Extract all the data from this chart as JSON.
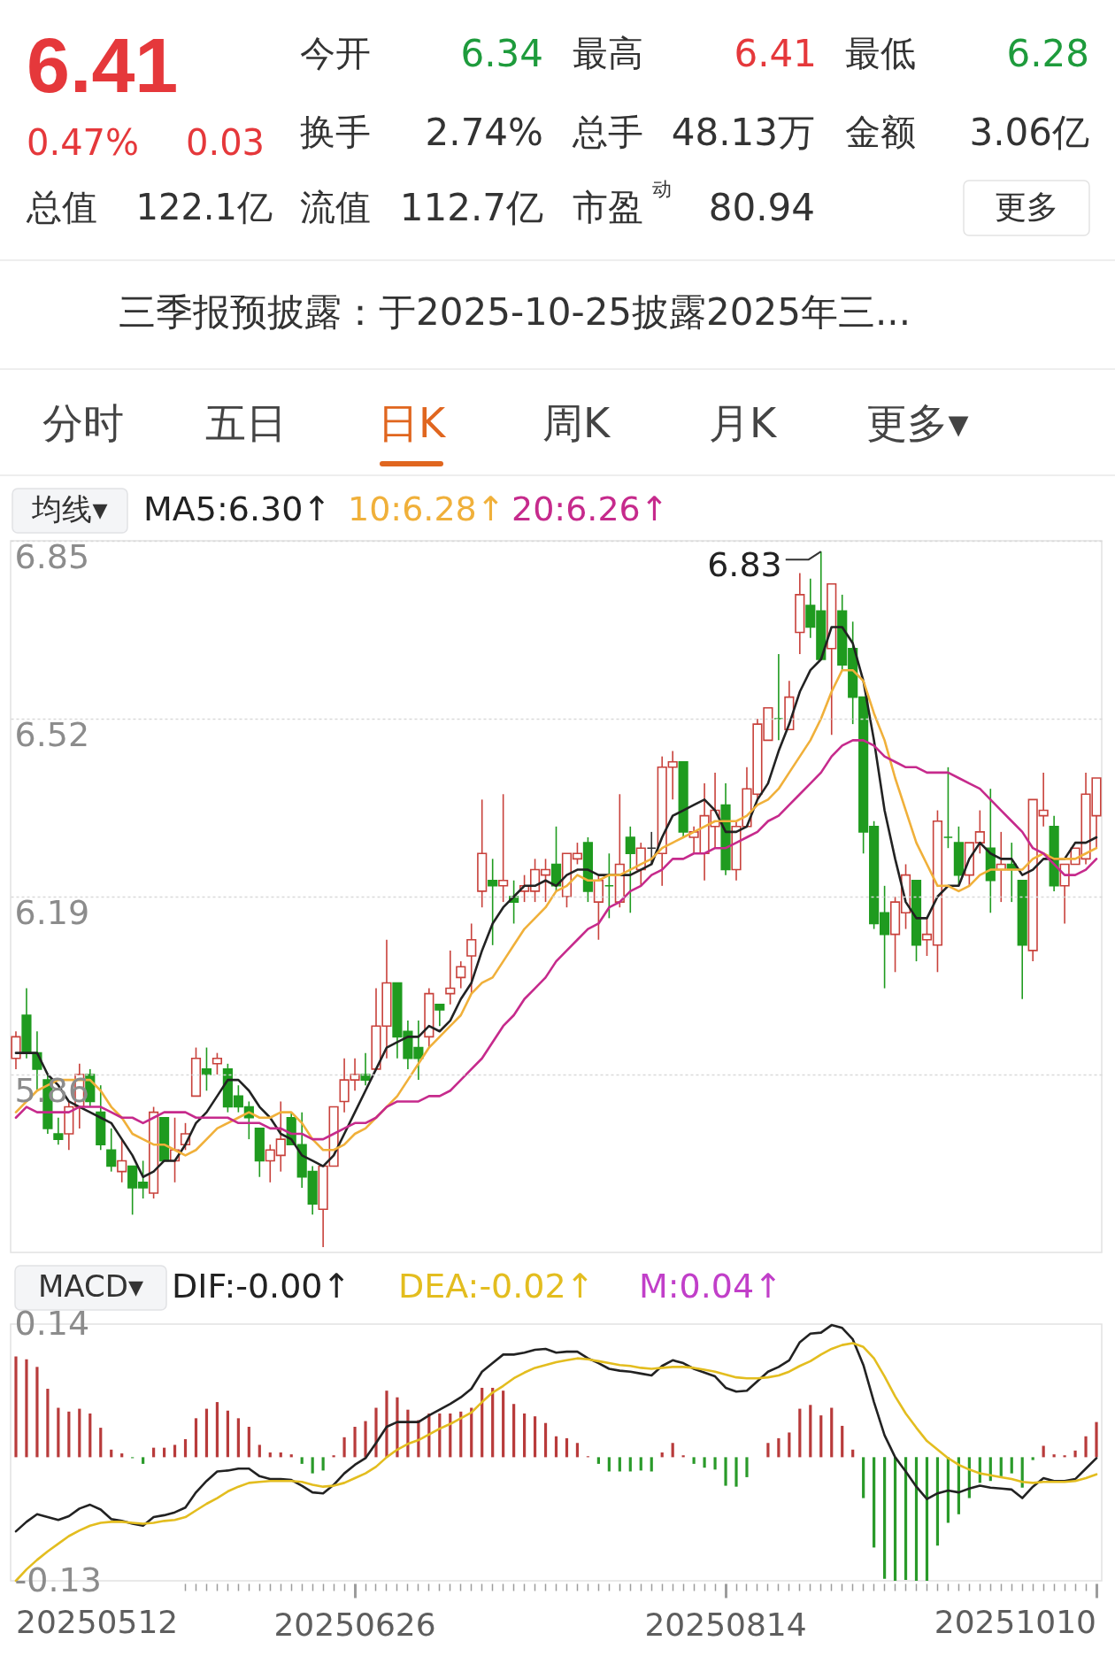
{
  "chart_data": [
    {
      "type": "other",
      "annotations": [
        "6.41",
        "0.47%",
        "0.03",
        "今开",
        "6.34",
        "最高",
        "6.41",
        "最低",
        "6.28",
        "换手",
        "2.74%",
        "总手",
        "48.13万",
        "金额",
        "3.06亿",
        "总值",
        "122.1亿",
        "流值",
        "112.7亿",
        "市盈$^{动}$",
        "80.94",
        "更多",
        "三季报预披露：于2025-10-25披露2025年三...",
        "分时",
        "五日",
        "日K",
        "周K",
        "月K",
        "更多▾"
      ]
    },
    {
      "type": "candlestick",
      "legend": "top left",
      "legend_title": "均线▾",
      "grid": "y",
      "tick_labels": "y",
      "ylim": [
        5.53,
        6.85
      ],
      "yticks": [
        5.86,
        6.19,
        6.52,
        6.85
      ],
      "annotations": [
        "6.83"
      ],
      "categories": [
        null,
        null,
        null,
        null,
        null,
        null,
        null,
        null,
        null,
        null,
        null,
        null,
        null,
        null,
        null,
        null,
        null,
        null,
        null,
        null,
        null,
        null,
        null,
        null,
        null,
        null,
        null,
        null,
        null,
        null,
        null,
        null,
        null,
        null,
        null,
        null,
        null,
        null,
        null,
        null,
        null,
        null,
        null,
        null,
        null,
        null,
        null,
        null,
        null,
        null,
        null,
        null,
        null,
        null,
        null,
        null,
        null,
        null,
        null,
        null,
        null,
        null,
        null,
        null,
        null,
        null,
        null,
        null,
        null,
        null,
        null,
        null,
        null,
        null,
        null,
        null,
        null,
        null,
        null,
        null,
        null,
        null,
        null,
        null,
        null,
        null,
        null,
        null,
        null,
        null,
        null,
        null,
        null,
        null,
        null,
        null,
        null,
        null,
        null,
        null,
        null,
        null,
        null
      ],
      "ohlc": [
        [
          5.89,
          5.94,
          5.87,
          5.93
        ],
        [
          5.97,
          6.02,
          5.89,
          5.9
        ],
        [
          5.9,
          5.94,
          5.83,
          5.87
        ],
        [
          5.85,
          5.86,
          5.75,
          5.76
        ],
        [
          5.75,
          5.78,
          5.73,
          5.74
        ],
        [
          5.75,
          5.81,
          5.72,
          5.8
        ],
        [
          5.8,
          5.88,
          5.76,
          5.86
        ],
        [
          5.86,
          5.87,
          5.8,
          5.81
        ],
        [
          5.79,
          5.84,
          5.72,
          5.73
        ],
        [
          5.72,
          5.76,
          5.68,
          5.69
        ],
        [
          5.68,
          5.74,
          5.66,
          5.7
        ],
        [
          5.69,
          5.69,
          5.6,
          5.65
        ],
        [
          5.66,
          5.7,
          5.63,
          5.65
        ],
        [
          5.64,
          5.8,
          5.63,
          5.79
        ],
        [
          5.78,
          5.78,
          5.7,
          5.7
        ],
        [
          5.7,
          5.78,
          5.66,
          5.72
        ],
        [
          5.73,
          5.77,
          5.72,
          5.75
        ],
        [
          5.82,
          5.91,
          5.82,
          5.89
        ],
        [
          5.87,
          5.91,
          5.83,
          5.86
        ],
        [
          5.88,
          5.9,
          5.86,
          5.89
        ],
        [
          5.87,
          5.88,
          5.79,
          5.8
        ],
        [
          5.82,
          5.84,
          5.79,
          5.8
        ],
        [
          5.8,
          5.81,
          5.74,
          5.78
        ],
        [
          5.76,
          5.76,
          5.67,
          5.7
        ],
        [
          5.7,
          5.73,
          5.66,
          5.72
        ],
        [
          5.71,
          5.81,
          5.68,
          5.74
        ],
        [
          5.78,
          5.79,
          5.73,
          5.73
        ],
        [
          5.73,
          5.79,
          5.65,
          5.67
        ],
        [
          5.68,
          5.69,
          5.6,
          5.62
        ],
        [
          5.61,
          5.69,
          5.54,
          5.69
        ],
        [
          5.69,
          5.8,
          5.69,
          5.8
        ],
        [
          5.81,
          5.89,
          5.79,
          5.85
        ],
        [
          5.85,
          5.89,
          5.83,
          5.86
        ],
        [
          5.86,
          5.9,
          5.84,
          5.85
        ],
        [
          5.87,
          6.02,
          5.87,
          5.95
        ],
        [
          5.95,
          6.11,
          5.89,
          6.03
        ],
        [
          6.03,
          6.03,
          5.89,
          5.93
        ],
        [
          5.94,
          5.96,
          5.87,
          5.89
        ],
        [
          5.91,
          5.96,
          5.85,
          5.89
        ],
        [
          5.93,
          6.02,
          5.91,
          6.01
        ],
        [
          5.99,
          5.99,
          5.95,
          5.98
        ],
        [
          6.01,
          6.09,
          5.99,
          6.02
        ],
        [
          6.04,
          6.07,
          6.02,
          6.06
        ],
        [
          6.08,
          6.14,
          6.01,
          6.11
        ],
        [
          6.2,
          6.37,
          6.17,
          6.27
        ],
        [
          6.22,
          6.26,
          6.1,
          6.21
        ],
        [
          6.21,
          6.38,
          6.18,
          6.22
        ],
        [
          6.19,
          6.22,
          6.14,
          6.18
        ],
        [
          6.2,
          6.23,
          6.18,
          6.21
        ],
        [
          6.2,
          6.26,
          6.18,
          6.24
        ],
        [
          6.23,
          6.26,
          6.18,
          6.24
        ],
        [
          6.25,
          6.32,
          6.2,
          6.21
        ],
        [
          6.19,
          6.27,
          6.17,
          6.27
        ],
        [
          6.26,
          6.29,
          6.25,
          6.27
        ],
        [
          6.29,
          6.3,
          6.18,
          6.2
        ],
        [
          6.18,
          6.23,
          6.11,
          6.22
        ],
        [
          6.21,
          6.27,
          6.15,
          6.21
        ],
        [
          6.18,
          6.38,
          6.17,
          6.25
        ],
        [
          6.3,
          6.32,
          6.16,
          6.27
        ],
        [
          6.24,
          6.29,
          6.21,
          6.28
        ],
        [
          6.28,
          6.31,
          6.25,
          6.28
        ],
        [
          6.27,
          6.45,
          6.21,
          6.43
        ],
        [
          6.43,
          6.46,
          6.37,
          6.44
        ],
        [
          6.44,
          6.44,
          6.3,
          6.31
        ],
        [
          6.3,
          6.32,
          6.27,
          6.31
        ],
        [
          6.27,
          6.4,
          6.22,
          6.34
        ],
        [
          6.32,
          6.42,
          6.28,
          6.35
        ],
        [
          6.36,
          6.4,
          6.23,
          6.24
        ],
        [
          6.24,
          6.33,
          6.22,
          6.32
        ],
        [
          6.32,
          6.43,
          6.32,
          6.39
        ],
        [
          6.38,
          6.52,
          6.37,
          6.51
        ],
        [
          6.48,
          6.54,
          6.48,
          6.54
        ],
        [
          6.52,
          6.64,
          6.48,
          6.52
        ],
        [
          6.5,
          6.59,
          6.5,
          6.56
        ],
        [
          6.68,
          6.79,
          6.64,
          6.75
        ],
        [
          6.73,
          6.78,
          6.67,
          6.69
        ],
        [
          6.72,
          6.83,
          6.63,
          6.63
        ],
        [
          6.65,
          6.77,
          6.49,
          6.77
        ],
        [
          6.72,
          6.75,
          6.61,
          6.62
        ],
        [
          6.65,
          6.7,
          6.51,
          6.56
        ],
        [
          6.56,
          6.56,
          6.27,
          6.31
        ],
        [
          6.32,
          6.33,
          6.13,
          6.14
        ],
        [
          6.16,
          6.21,
          6.02,
          6.12
        ],
        [
          6.12,
          6.19,
          6.05,
          6.18
        ],
        [
          6.16,
          6.25,
          6.13,
          6.23
        ],
        [
          6.22,
          6.22,
          6.07,
          6.1
        ],
        [
          6.11,
          6.15,
          6.08,
          6.12
        ],
        [
          6.1,
          6.35,
          6.05,
          6.33
        ],
        [
          6.3,
          6.43,
          6.28,
          6.3
        ],
        [
          6.29,
          6.32,
          6.21,
          6.23
        ],
        [
          6.23,
          6.29,
          6.21,
          6.29
        ],
        [
          6.29,
          6.35,
          6.27,
          6.31
        ],
        [
          6.28,
          6.39,
          6.16,
          6.22
        ],
        [
          6.24,
          6.31,
          6.18,
          6.25
        ],
        [
          6.25,
          6.29,
          6.18,
          6.24
        ],
        [
          6.22,
          6.22,
          6.0,
          6.1
        ],
        [
          6.09,
          6.37,
          6.07,
          6.37
        ],
        [
          6.34,
          6.42,
          6.32,
          6.35
        ],
        [
          6.32,
          6.34,
          6.2,
          6.21
        ],
        [
          6.21,
          6.25,
          6.14,
          6.25
        ],
        [
          6.25,
          6.28,
          6.25,
          6.28
        ],
        [
          6.26,
          6.42,
          6.25,
          6.38
        ],
        [
          6.34,
          6.41,
          6.28,
          6.41
        ]
      ],
      "colors": [
        "#c8413b",
        "#1f9b1f",
        "#1f9b1f",
        "#1f9b1f",
        "#1f9b1f",
        "#c8413b",
        "#c8413b",
        "#1f9b1f",
        "#1f9b1f",
        "#1f9b1f",
        "#c8413b",
        "#1f9b1f",
        "#1f9b1f",
        "#c8413b",
        "#1f9b1f",
        "#c8413b",
        "#c8413b",
        "#c8413b",
        "#1f9b1f",
        "#c8413b",
        "#1f9b1f",
        "#1f9b1f",
        "#1f9b1f",
        "#1f9b1f",
        "#c8413b",
        "#c8413b",
        "#1f9b1f",
        "#1f9b1f",
        "#1f9b1f",
        "#c8413b",
        "#c8413b",
        "#c8413b",
        "#c8413b",
        "#1f9b1f",
        "#c8413b",
        "#c8413b",
        "#1f9b1f",
        "#1f9b1f",
        "#1f9b1f",
        "#c8413b",
        "#1f9b1f",
        "#c8413b",
        "#c8413b",
        "#c8413b",
        "#c8413b",
        "#1f9b1f",
        "#c8413b",
        "#1f9b1f",
        "#c8413b",
        "#c8413b",
        "#c8413b",
        "#1f9b1f",
        "#c8413b",
        "#c8413b",
        "#1f9b1f",
        "#c8413b",
        "#1f9b1f",
        "#c8413b",
        "#1f9b1f",
        "#c8413b",
        "#333333",
        "#c8413b",
        "#c8413b",
        "#1f9b1f",
        "#c8413b",
        "#c8413b",
        "#c8413b",
        "#1f9b1f",
        "#c8413b",
        "#c8413b",
        "#c8413b",
        "#c8413b",
        "#1f9b1f",
        "#c8413b",
        "#c8413b",
        "#1f9b1f",
        "#1f9b1f",
        "#c8413b",
        "#1f9b1f",
        "#1f9b1f",
        "#1f9b1f",
        "#1f9b1f",
        "#1f9b1f",
        "#c8413b",
        "#c8413b",
        "#1f9b1f",
        "#c8413b",
        "#c8413b",
        "#1f9b1f",
        "#1f9b1f",
        "#c8413b",
        "#c8413b",
        "#1f9b1f",
        "#c8413b",
        "#1f9b1f",
        "#1f9b1f",
        "#c8413b",
        "#c8413b",
        "#1f9b1f",
        "#c8413b",
        "#c8413b",
        "#c8413b",
        "#c8413b"
      ],
      "series": [
        {
          "name": "MA5:6.30↑",
          "type": "line",
          "color": "#222222",
          "values": [
            5.9,
            5.9,
            5.9,
            5.86,
            5.84,
            5.81,
            5.8,
            5.79,
            5.78,
            5.77,
            5.74,
            5.71,
            5.67,
            5.68,
            5.7,
            5.7,
            5.73,
            5.77,
            5.79,
            5.82,
            5.85,
            5.85,
            5.83,
            5.8,
            5.78,
            5.75,
            5.74,
            5.71,
            5.7,
            5.69,
            5.71,
            5.75,
            5.79,
            5.83,
            5.87,
            5.91,
            5.92,
            5.93,
            5.93,
            5.95,
            5.94,
            5.96,
            6.0,
            6.03,
            6.09,
            6.14,
            6.17,
            6.19,
            6.21,
            6.21,
            6.22,
            6.21,
            6.23,
            6.24,
            6.24,
            6.23,
            6.23,
            6.23,
            6.23,
            6.24,
            6.25,
            6.3,
            6.34,
            6.35,
            6.36,
            6.37,
            6.35,
            6.31,
            6.31,
            6.32,
            6.37,
            6.4,
            6.46,
            6.51,
            6.57,
            6.61,
            6.63,
            6.69,
            6.69,
            6.66,
            6.59,
            6.48,
            6.35,
            6.26,
            6.18,
            6.15,
            6.15,
            6.19,
            6.21,
            6.21,
            6.26,
            6.29,
            6.27,
            6.26,
            6.26,
            6.23,
            6.24,
            6.26,
            6.26,
            6.26,
            6.29,
            6.29,
            6.3
          ]
        },
        {
          "name": "10:6.28↑",
          "type": "line",
          "color": "#f0b03a",
          "values": [
            5.79,
            5.81,
            5.83,
            5.84,
            5.85,
            5.85,
            5.85,
            5.85,
            5.83,
            5.8,
            5.78,
            5.75,
            5.74,
            5.73,
            5.73,
            5.72,
            5.71,
            5.72,
            5.74,
            5.76,
            5.77,
            5.78,
            5.79,
            5.78,
            5.78,
            5.79,
            5.79,
            5.77,
            5.74,
            5.72,
            5.72,
            5.73,
            5.75,
            5.76,
            5.78,
            5.8,
            5.82,
            5.85,
            5.88,
            5.91,
            5.93,
            5.95,
            5.97,
            6.01,
            6.03,
            6.04,
            6.07,
            6.1,
            6.13,
            6.15,
            6.17,
            6.2,
            6.21,
            6.23,
            6.22,
            6.22,
            6.23,
            6.23,
            6.24,
            6.25,
            6.26,
            6.28,
            6.29,
            6.3,
            6.31,
            6.32,
            6.33,
            6.33,
            6.33,
            6.34,
            6.36,
            6.37,
            6.39,
            6.42,
            6.45,
            6.48,
            6.52,
            6.57,
            6.61,
            6.61,
            6.59,
            6.53,
            6.48,
            6.41,
            6.35,
            6.29,
            6.25,
            6.21,
            6.21,
            6.2,
            6.21,
            6.23,
            6.24,
            6.24,
            6.24,
            6.24,
            6.26,
            6.27,
            6.26,
            6.26,
            6.26,
            6.27,
            6.28
          ]
        },
        {
          "name": "20:6.26↑",
          "type": "line",
          "color": "#c62a8c",
          "values": [
            5.78,
            5.8,
            5.79,
            5.79,
            5.79,
            5.79,
            5.8,
            5.8,
            5.8,
            5.79,
            5.78,
            5.78,
            5.77,
            5.78,
            5.79,
            5.79,
            5.79,
            5.78,
            5.78,
            5.78,
            5.78,
            5.77,
            5.77,
            5.77,
            5.76,
            5.76,
            5.75,
            5.75,
            5.74,
            5.74,
            5.75,
            5.76,
            5.77,
            5.77,
            5.78,
            5.8,
            5.81,
            5.81,
            5.81,
            5.82,
            5.82,
            5.83,
            5.85,
            5.87,
            5.89,
            5.92,
            5.95,
            5.97,
            6.0,
            6.02,
            6.04,
            6.07,
            6.09,
            6.11,
            6.13,
            6.14,
            6.17,
            6.18,
            6.2,
            6.21,
            6.23,
            6.24,
            6.26,
            6.26,
            6.27,
            6.27,
            6.28,
            6.28,
            6.29,
            6.3,
            6.31,
            6.33,
            6.34,
            6.36,
            6.38,
            6.4,
            6.42,
            6.45,
            6.47,
            6.48,
            6.48,
            6.47,
            6.45,
            6.44,
            6.43,
            6.43,
            6.42,
            6.42,
            6.42,
            6.41,
            6.4,
            6.39,
            6.37,
            6.35,
            6.33,
            6.31,
            6.28,
            6.27,
            6.25,
            6.23,
            6.23,
            6.24,
            6.26
          ]
        }
      ]
    },
    {
      "type": "bar",
      "legend": "top left",
      "legend_title": "MACD▾",
      "ylim": [
        -0.13,
        0.14
      ],
      "yticks": [
        -0.13,
        0.14
      ],
      "annotations": [
        "M:0.04↑",
        "20250512",
        "20251010"
      ],
      "categories": [
        null,
        null,
        null,
        null,
        null,
        null,
        null,
        null,
        null,
        null,
        null,
        null,
        null,
        null,
        null,
        null,
        null,
        null,
        null,
        null,
        null,
        null,
        null,
        null,
        null,
        null,
        null,
        null,
        null,
        null,
        null,
        null,
        "20250626",
        null,
        null,
        null,
        null,
        null,
        null,
        null,
        null,
        null,
        null,
        null,
        null,
        null,
        null,
        null,
        null,
        null,
        null,
        null,
        null,
        null,
        null,
        null,
        null,
        null,
        null,
        null,
        null,
        null,
        null,
        null,
        null,
        null,
        null,
        "20250814",
        null,
        null,
        null,
        null,
        null,
        null,
        null,
        null,
        null,
        null,
        null,
        null,
        null,
        null,
        null,
        null,
        null,
        null,
        null,
        null,
        null,
        null,
        null,
        null,
        null,
        null,
        null,
        null,
        null,
        null,
        null,
        null,
        null,
        null,
        null
      ],
      "series": [
        {
          "name": "DIF:-0.00↑",
          "type": "line",
          "color": "#222222",
          "values": [
            -0.078,
            -0.068,
            -0.06,
            -0.063,
            -0.066,
            -0.062,
            -0.054,
            -0.05,
            -0.055,
            -0.065,
            -0.067,
            -0.07,
            -0.072,
            -0.063,
            -0.061,
            -0.058,
            -0.053,
            -0.037,
            -0.025,
            -0.015,
            -0.014,
            -0.012,
            -0.012,
            -0.02,
            -0.023,
            -0.023,
            -0.024,
            -0.03,
            -0.037,
            -0.038,
            -0.029,
            -0.017,
            -0.008,
            -0.001,
            0.015,
            0.032,
            0.037,
            0.037,
            0.037,
            0.044,
            0.05,
            0.056,
            0.063,
            0.072,
            0.09,
            0.099,
            0.108,
            0.108,
            0.11,
            0.113,
            0.114,
            0.11,
            0.111,
            0.111,
            0.104,
            0.099,
            0.093,
            0.091,
            0.09,
            0.088,
            0.086,
            0.096,
            0.102,
            0.099,
            0.093,
            0.089,
            0.085,
            0.073,
            0.069,
            0.07,
            0.08,
            0.09,
            0.095,
            0.102,
            0.121,
            0.13,
            0.131,
            0.139,
            0.136,
            0.124,
            0.097,
            0.058,
            0.023,
            0.0,
            -0.015,
            -0.031,
            -0.044,
            -0.038,
            -0.035,
            -0.037,
            -0.033,
            -0.03,
            -0.032,
            -0.033,
            -0.034,
            -0.043,
            -0.031,
            -0.022,
            -0.025,
            -0.025,
            -0.023,
            -0.012,
            -0.001
          ]
        },
        {
          "name": "DEA:-0.02↑",
          "type": "line",
          "color": "#e3bd1f",
          "values": [
            -0.13,
            -0.118,
            -0.108,
            -0.099,
            -0.091,
            -0.083,
            -0.077,
            -0.072,
            -0.069,
            -0.068,
            -0.068,
            -0.069,
            -0.07,
            -0.069,
            -0.067,
            -0.066,
            -0.063,
            -0.056,
            -0.049,
            -0.043,
            -0.036,
            -0.031,
            -0.027,
            -0.026,
            -0.025,
            -0.025,
            -0.025,
            -0.026,
            -0.029,
            -0.031,
            -0.03,
            -0.027,
            -0.022,
            -0.017,
            -0.01,
            0.0,
            0.008,
            0.014,
            0.018,
            0.024,
            0.03,
            0.035,
            0.041,
            0.047,
            0.058,
            0.068,
            0.075,
            0.083,
            0.089,
            0.094,
            0.097,
            0.1,
            0.102,
            0.104,
            0.103,
            0.101,
            0.099,
            0.097,
            0.096,
            0.094,
            0.093,
            0.094,
            0.095,
            0.095,
            0.094,
            0.092,
            0.09,
            0.087,
            0.084,
            0.083,
            0.083,
            0.084,
            0.086,
            0.09,
            0.096,
            0.101,
            0.108,
            0.114,
            0.118,
            0.12,
            0.116,
            0.104,
            0.085,
            0.064,
            0.046,
            0.031,
            0.017,
            0.008,
            -0.001,
            -0.008,
            -0.013,
            -0.017,
            -0.019,
            -0.021,
            -0.023,
            -0.026,
            -0.027,
            -0.026,
            -0.026,
            -0.026,
            -0.025,
            -0.022,
            -0.018
          ]
        },
        {
          "type": "bar",
          "values": [
            0.106,
            0.103,
            0.095,
            0.072,
            0.052,
            0.048,
            0.051,
            0.046,
            0.031,
            0.008,
            0.004,
            -0.001,
            -0.007,
            0.01,
            0.01,
            0.013,
            0.019,
            0.041,
            0.051,
            0.058,
            0.049,
            0.041,
            0.032,
            0.013,
            0.005,
            0.005,
            0.003,
            -0.007,
            -0.017,
            -0.014,
            0.002,
            0.021,
            0.032,
            0.038,
            0.052,
            0.07,
            0.063,
            0.05,
            0.039,
            0.046,
            0.046,
            0.046,
            0.048,
            0.052,
            0.073,
            0.073,
            0.07,
            0.056,
            0.046,
            0.043,
            0.036,
            0.022,
            0.02,
            0.015,
            0.001,
            -0.007,
            -0.015,
            -0.015,
            -0.015,
            -0.014,
            -0.015,
            0.005,
            0.015,
            0.002,
            -0.007,
            -0.011,
            -0.013,
            -0.03,
            -0.031,
            -0.021,
            0,
            0.015,
            0.02,
            0.026,
            0.051,
            0.055,
            0.044,
            0.052,
            0.033,
            0.008,
            -0.043,
            -0.095,
            -0.128,
            -0.13,
            -0.129,
            -0.13,
            -0.13,
            -0.093,
            -0.069,
            -0.06,
            -0.043,
            -0.027,
            -0.025,
            -0.02,
            -0.017,
            -0.032,
            -0.003,
            0.012,
            0.003,
            0.002,
            0.007,
            0.022,
            0.037
          ],
          "colors": [
            "#b83b3b",
            "#b83b3b",
            "#b83b3b",
            "#b83b3b",
            "#b83b3b",
            "#b83b3b",
            "#b83b3b",
            "#b83b3b",
            "#b83b3b",
            "#b83b3b",
            "#b83b3b",
            "#2a9a2a",
            "#2a9a2a",
            "#b83b3b",
            "#b83b3b",
            "#b83b3b",
            "#b83b3b",
            "#b83b3b",
            "#b83b3b",
            "#b83b3b",
            "#b83b3b",
            "#b83b3b",
            "#b83b3b",
            "#b83b3b",
            "#b83b3b",
            "#b83b3b",
            "#b83b3b",
            "#2a9a2a",
            "#2a9a2a",
            "#2a9a2a",
            "#b83b3b",
            "#b83b3b",
            "#b83b3b",
            "#b83b3b",
            "#b83b3b",
            "#b83b3b",
            "#b83b3b",
            "#b83b3b",
            "#b83b3b",
            "#b83b3b",
            "#b83b3b",
            "#b83b3b",
            "#b83b3b",
            "#b83b3b",
            "#b83b3b",
            "#b83b3b",
            "#b83b3b",
            "#b83b3b",
            "#b83b3b",
            "#b83b3b",
            "#b83b3b",
            "#b83b3b",
            "#b83b3b",
            "#b83b3b",
            "#b83b3b",
            "#2a9a2a",
            "#2a9a2a",
            "#2a9a2a",
            "#2a9a2a",
            "#2a9a2a",
            "#2a9a2a",
            "#b83b3b",
            "#b83b3b",
            "#b83b3b",
            "#2a9a2a",
            "#2a9a2a",
            "#2a9a2a",
            "#2a9a2a",
            "#2a9a2a",
            "#2a9a2a",
            "#b83b3b",
            "#b83b3b",
            "#b83b3b",
            "#b83b3b",
            "#b83b3b",
            "#b83b3b",
            "#b83b3b",
            "#b83b3b",
            "#b83b3b",
            "#b83b3b",
            "#2a9a2a",
            "#2a9a2a",
            "#2a9a2a",
            "#2a9a2a",
            "#2a9a2a",
            "#2a9a2a",
            "#2a9a2a",
            "#2a9a2a",
            "#2a9a2a",
            "#2a9a2a",
            "#2a9a2a",
            "#2a9a2a",
            "#2a9a2a",
            "#2a9a2a",
            "#2a9a2a",
            "#2a9a2a",
            "#2a9a2a",
            "#b83b3b",
            "#b83b3b",
            "#b83b3b",
            "#b83b3b",
            "#b83b3b",
            "#b83b3b"
          ]
        }
      ]
    }
  ]
}
